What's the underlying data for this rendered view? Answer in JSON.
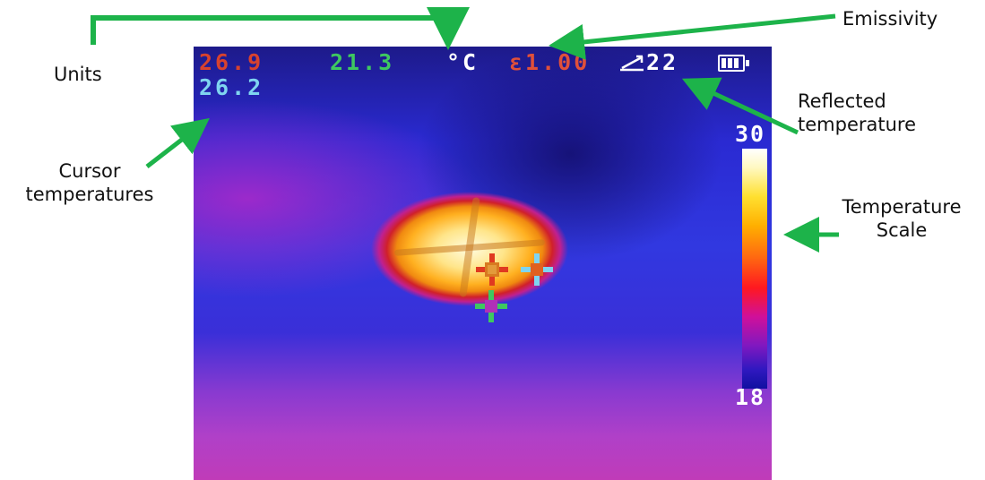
{
  "screen": {
    "max_temp": "26.9",
    "center_temp": "21.3",
    "cursor_temp": "26.2",
    "unit": "°C",
    "emissivity": "ε1.00",
    "reflected_temp": "22",
    "scale_max": "30",
    "scale_min": "18"
  },
  "labels": {
    "units": "Units",
    "emissivity": "Emissivity",
    "reflected_temperature_line1": "Reflected",
    "reflected_temperature_line2": "temperature",
    "cursor_temperatures_line1": "Cursor",
    "cursor_temperatures_line2": "temperatures",
    "temperature_scale_line1": "Temperature",
    "temperature_scale_line2": "Scale"
  },
  "colors": {
    "arrow": "#1db34a",
    "max_text": "#d8422e",
    "center_text": "#3ec860",
    "cursor_text": "#7fd4f0",
    "emissivity_text": "#e0503a"
  },
  "icons": [
    "reflected-temperature-icon",
    "battery-icon",
    "crosshair-icon"
  ]
}
